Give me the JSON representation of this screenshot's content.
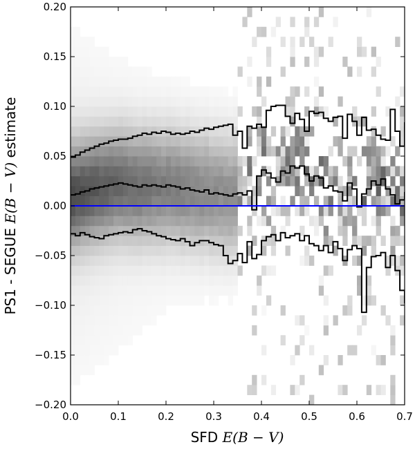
{
  "chart_data": {
    "type": "heatmap",
    "title": "",
    "xlabel": "SFD E(B − V)",
    "xlabel_prefix": "SFD ",
    "xlabel_math": "E(B − V)",
    "ylabel": "PS1 - SEGUE E(B − V) estimate",
    "ylabel_prefix": "PS1 - SEGUE ",
    "ylabel_math": "E(B − V)",
    "ylabel_suffix": " estimate",
    "xlim": [
      0.0,
      0.7
    ],
    "ylim": [
      -0.2,
      0.2
    ],
    "xticks": [
      0.0,
      0.1,
      0.2,
      0.3,
      0.4,
      0.5,
      0.6,
      0.7
    ],
    "xtick_labels": [
      "0.0",
      "0.1",
      "0.2",
      "0.3",
      "0.4",
      "0.5",
      "0.6",
      "0.7"
    ],
    "yticks": [
      -0.2,
      -0.15,
      -0.1,
      -0.05,
      0.0,
      0.05,
      0.1,
      0.15,
      0.2
    ],
    "ytick_labels": [
      "−0.20",
      "−0.15",
      "−0.10",
      "−0.05",
      "0.00",
      "0.05",
      "0.10",
      "0.15",
      "0.20"
    ],
    "grid": false,
    "colormap": "greys (white = low density, black = high density)",
    "heatmap": {
      "x_bin_width": 0.01,
      "y_bin_width": 0.01,
      "description": "2D histogram of stars: dense at low SFD E(B-V), centered near 0.01, sparse and noisy above 0.4"
    },
    "series": [
      {
        "name": "",
        "role": "upper percentile",
        "style": "black step",
        "x": [
          0.0,
          0.01,
          0.02,
          0.03,
          0.04,
          0.05,
          0.06,
          0.07,
          0.08,
          0.09,
          0.1,
          0.11,
          0.12,
          0.13,
          0.14,
          0.15,
          0.16,
          0.17,
          0.18,
          0.19,
          0.2,
          0.21,
          0.22,
          0.23,
          0.24,
          0.25,
          0.26,
          0.27,
          0.28,
          0.29,
          0.3,
          0.31,
          0.32,
          0.33,
          0.34,
          0.35,
          0.36,
          0.37,
          0.38,
          0.39,
          0.4,
          0.41,
          0.42,
          0.43,
          0.44,
          0.45,
          0.46,
          0.47,
          0.48,
          0.49,
          0.5,
          0.51,
          0.52,
          0.53,
          0.54,
          0.55,
          0.56,
          0.57,
          0.58,
          0.59,
          0.6,
          0.61,
          0.62,
          0.63,
          0.64,
          0.65,
          0.66,
          0.67,
          0.68,
          0.69,
          0.7
        ],
        "y": [
          0.049,
          0.051,
          0.054,
          0.056,
          0.058,
          0.06,
          0.062,
          0.063,
          0.065,
          0.066,
          0.067,
          0.067,
          0.068,
          0.07,
          0.071,
          0.073,
          0.072,
          0.074,
          0.073,
          0.075,
          0.074,
          0.072,
          0.073,
          0.072,
          0.073,
          0.075,
          0.074,
          0.076,
          0.078,
          0.077,
          0.079,
          0.08,
          0.081,
          0.082,
          0.071,
          0.075,
          0.058,
          0.08,
          0.078,
          0.082,
          0.079,
          0.096,
          0.1,
          0.101,
          0.101,
          0.09,
          0.083,
          0.093,
          0.087,
          0.075,
          0.095,
          0.093,
          0.094,
          0.088,
          0.085,
          0.089,
          0.09,
          0.068,
          0.092,
          0.085,
          0.071,
          0.089,
          0.076,
          0.077,
          0.071,
          0.067,
          0.066,
          0.097,
          0.075,
          0.06,
          0.084
        ]
      },
      {
        "name": "",
        "role": "median",
        "style": "black step",
        "x": [
          0.0,
          0.01,
          0.02,
          0.03,
          0.04,
          0.05,
          0.06,
          0.07,
          0.08,
          0.09,
          0.1,
          0.11,
          0.12,
          0.13,
          0.14,
          0.15,
          0.16,
          0.17,
          0.18,
          0.19,
          0.2,
          0.21,
          0.22,
          0.23,
          0.24,
          0.25,
          0.26,
          0.27,
          0.28,
          0.29,
          0.3,
          0.31,
          0.32,
          0.33,
          0.34,
          0.35,
          0.36,
          0.37,
          0.38,
          0.39,
          0.4,
          0.41,
          0.42,
          0.43,
          0.44,
          0.45,
          0.46,
          0.47,
          0.48,
          0.49,
          0.5,
          0.51,
          0.52,
          0.53,
          0.54,
          0.55,
          0.56,
          0.57,
          0.58,
          0.59,
          0.6,
          0.61,
          0.62,
          0.63,
          0.64,
          0.65,
          0.66,
          0.67,
          0.68,
          0.69,
          0.7
        ],
        "y": [
          0.011,
          0.012,
          0.014,
          0.015,
          0.017,
          0.018,
          0.019,
          0.02,
          0.021,
          0.022,
          0.023,
          0.022,
          0.021,
          0.02,
          0.019,
          0.021,
          0.02,
          0.021,
          0.02,
          0.019,
          0.021,
          0.02,
          0.019,
          0.017,
          0.018,
          0.016,
          0.015,
          0.014,
          0.016,
          0.012,
          0.013,
          0.012,
          0.011,
          0.01,
          0.012,
          0.013,
          0.011,
          0.015,
          -0.004,
          0.03,
          0.036,
          0.033,
          0.028,
          0.024,
          0.035,
          0.033,
          0.04,
          0.038,
          0.04,
          0.032,
          0.025,
          0.03,
          0.028,
          0.018,
          0.02,
          0.015,
          0.014,
          0.005,
          0.023,
          0.017,
          -0.001,
          0.012,
          0.017,
          0.025,
          0.021,
          0.027,
          0.017,
          0.011,
          0.002,
          0.006,
          0.014
        ]
      },
      {
        "name": "",
        "role": "lower percentile",
        "style": "black step",
        "x": [
          0.0,
          0.01,
          0.02,
          0.03,
          0.04,
          0.05,
          0.06,
          0.07,
          0.08,
          0.09,
          0.1,
          0.11,
          0.12,
          0.13,
          0.14,
          0.15,
          0.16,
          0.17,
          0.18,
          0.19,
          0.2,
          0.21,
          0.22,
          0.23,
          0.24,
          0.25,
          0.26,
          0.27,
          0.28,
          0.29,
          0.3,
          0.31,
          0.32,
          0.33,
          0.34,
          0.35,
          0.36,
          0.37,
          0.38,
          0.39,
          0.4,
          0.41,
          0.42,
          0.43,
          0.44,
          0.45,
          0.46,
          0.47,
          0.48,
          0.49,
          0.5,
          0.51,
          0.52,
          0.53,
          0.54,
          0.55,
          0.56,
          0.57,
          0.58,
          0.59,
          0.6,
          0.61,
          0.62,
          0.63,
          0.64,
          0.65,
          0.66,
          0.67,
          0.68,
          0.69,
          0.7
        ],
        "y": [
          -0.028,
          -0.03,
          -0.027,
          -0.029,
          -0.031,
          -0.032,
          -0.033,
          -0.03,
          -0.029,
          -0.028,
          -0.027,
          -0.026,
          -0.027,
          -0.024,
          -0.023,
          -0.025,
          -0.026,
          -0.028,
          -0.03,
          -0.031,
          -0.033,
          -0.034,
          -0.035,
          -0.033,
          -0.036,
          -0.04,
          -0.037,
          -0.035,
          -0.035,
          -0.037,
          -0.039,
          -0.04,
          -0.05,
          -0.058,
          -0.055,
          -0.048,
          -0.057,
          -0.036,
          -0.053,
          -0.049,
          -0.035,
          -0.031,
          -0.029,
          -0.035,
          -0.027,
          -0.032,
          -0.03,
          -0.028,
          -0.035,
          -0.03,
          -0.038,
          -0.04,
          -0.045,
          -0.04,
          -0.047,
          -0.036,
          -0.043,
          -0.055,
          -0.044,
          -0.04,
          -0.043,
          -0.107,
          -0.062,
          -0.051,
          -0.05,
          -0.047,
          -0.062,
          -0.05,
          -0.065,
          -0.085,
          -0.098
        ]
      },
      {
        "name": "",
        "role": "reference line",
        "style": "blue line",
        "x": [
          0.0,
          0.7
        ],
        "y": [
          0.0,
          0.0
        ]
      }
    ]
  }
}
